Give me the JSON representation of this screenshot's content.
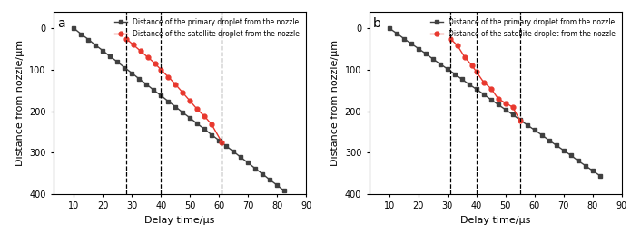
{
  "chart_data": [
    {
      "type": "line",
      "title": "a",
      "x_label": "Delay time/μs",
      "y_label": "Distance from nozzle/μm",
      "xlim": [
        3,
        90
      ],
      "xticks": [
        10,
        20,
        30,
        40,
        50,
        60,
        70,
        80,
        90
      ],
      "ylim": [
        400,
        -40
      ],
      "yticks": [
        0,
        100,
        200,
        300,
        400
      ],
      "grid": false,
      "legend": "upper right",
      "vlines": [
        28,
        40,
        61
      ],
      "series": [
        {
          "name": "Distance of the primary droplet from the nozzle",
          "color": "#404040",
          "marker": "square",
          "line_style": "solid",
          "x": [
            10,
            12.5,
            15,
            17.5,
            20,
            22.5,
            25,
            27.5,
            30,
            32.5,
            35,
            37.5,
            40,
            42.5,
            45,
            47.5,
            50,
            52.5,
            55,
            57.5,
            60,
            62.5,
            65,
            67.5,
            70,
            72.5,
            75,
            77.5,
            80,
            82.5
          ],
          "values": [
            0,
            14,
            27,
            41,
            54,
            68,
            81,
            95,
            108,
            122,
            135,
            149,
            162,
            176,
            189,
            203,
            216,
            230,
            243,
            257,
            270,
            284,
            297,
            311,
            324,
            338,
            351,
            365,
            378,
            392
          ]
        },
        {
          "name": "Distance of the satellite droplet from the nozzle",
          "color": "#e8382e",
          "marker": "circle",
          "line_style": "solid",
          "x": [
            28,
            30.5,
            33,
            35.5,
            38,
            40,
            42.5,
            45,
            47.5,
            50,
            52.5,
            55,
            57.5,
            61
          ],
          "values": [
            25,
            40,
            55,
            70,
            85,
            100,
            117,
            135,
            155,
            175,
            195,
            212,
            232,
            275
          ]
        }
      ]
    },
    {
      "type": "line",
      "title": "b",
      "x_label": "Delay time/μs",
      "y_label": "Distance from nozzle/μm",
      "xlim": [
        3,
        90
      ],
      "xticks": [
        10,
        20,
        30,
        40,
        50,
        60,
        70,
        80,
        90
      ],
      "ylim": [
        400,
        -40
      ],
      "yticks": [
        0,
        100,
        200,
        300,
        400
      ],
      "grid": false,
      "legend": "upper right",
      "vlines": [
        31,
        40,
        55
      ],
      "series": [
        {
          "name": "Distance of the primary droplet from the nozzle",
          "color": "#404040",
          "marker": "square",
          "line_style": "solid",
          "x": [
            10,
            12.5,
            15,
            17.5,
            20,
            22.5,
            25,
            27.5,
            30,
            32.5,
            35,
            37.5,
            40,
            42.5,
            45,
            47.5,
            50,
            52.5,
            55,
            57.5,
            60,
            62.5,
            65,
            67.5,
            70,
            72.5,
            75,
            77.5,
            80,
            82.5
          ],
          "values": [
            0,
            12,
            25,
            37,
            49,
            61,
            74,
            86,
            98,
            110,
            123,
            135,
            147,
            159,
            172,
            184,
            196,
            208,
            221,
            233,
            245,
            257,
            270,
            282,
            294,
            306,
            319,
            331,
            343,
            355
          ]
        },
        {
          "name": "Distance of the satellite droplet from the nozzle",
          "color": "#e8382e",
          "marker": "circle",
          "line_style": "solid",
          "x": [
            31,
            33.5,
            36,
            38.5,
            40,
            42.5,
            45,
            47.5,
            50,
            52.5,
            55
          ],
          "values": [
            25,
            42,
            70,
            90,
            105,
            130,
            145,
            170,
            180,
            190,
            222
          ]
        }
      ]
    }
  ]
}
